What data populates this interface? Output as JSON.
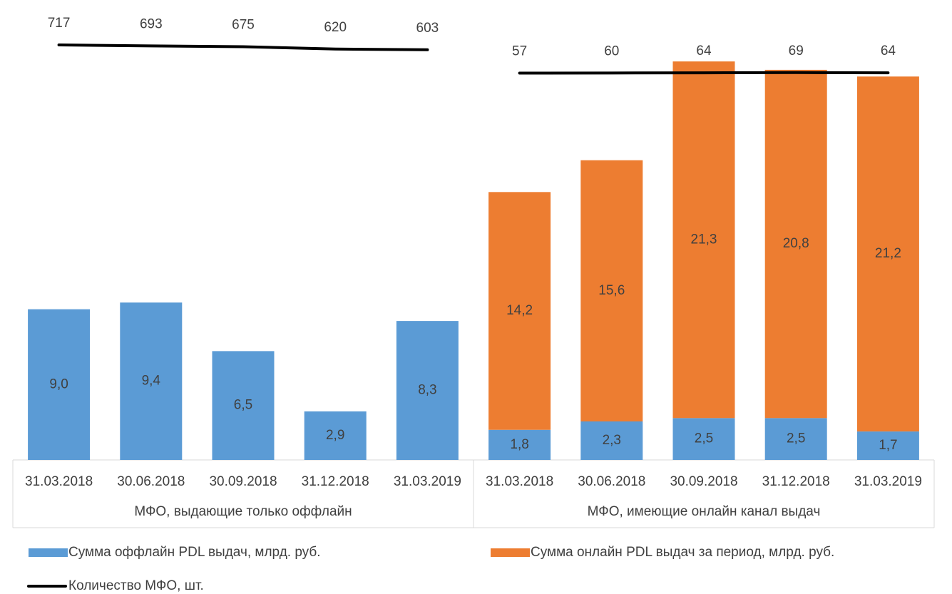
{
  "chart_data": {
    "type": "bar",
    "stacked": true,
    "categories": [
      "31.03.2018",
      "30.06.2018",
      "30.09.2018",
      "31.12.2018",
      "31.03.2019",
      "31.03.2018",
      "30.06.2018",
      "30.09.2018",
      "31.12.2018",
      "31.03.2019"
    ],
    "groups": [
      "МФО, выдающие только оффлайн",
      "МФО, имеющие онлайн канал выдач"
    ],
    "series": [
      {
        "name": "Сумма оффлайн PDL выдач, млрд. руб.",
        "color": "#5b9bd5",
        "values": [
          9.0,
          9.4,
          6.5,
          2.9,
          8.3,
          1.8,
          2.3,
          2.5,
          2.5,
          1.7
        ],
        "value_labels": [
          "9,0",
          "9,4",
          "6,5",
          "2,9",
          "8,3",
          "1,8",
          "2,3",
          "2,5",
          "2,5",
          "1,7"
        ]
      },
      {
        "name": "Сумма онлайн PDL выдач за период, млрд. руб.",
        "color": "#ed7d31",
        "values": [
          null,
          null,
          null,
          null,
          null,
          14.2,
          15.6,
          21.3,
          20.8,
          21.2
        ],
        "value_labels": [
          null,
          null,
          null,
          null,
          null,
          "14,2",
          "15,6",
          "21,3",
          "20,8",
          "21,2"
        ]
      },
      {
        "name": "Количество МФО, шт.",
        "color": "#000000",
        "type": "line",
        "axis": "y2",
        "values": [
          717,
          693,
          675,
          620,
          603,
          57,
          60,
          64,
          69,
          64
        ]
      }
    ],
    "ylim": [
      0,
      25
    ],
    "y2lim": [
      -9000,
      800
    ],
    "grid": false
  }
}
